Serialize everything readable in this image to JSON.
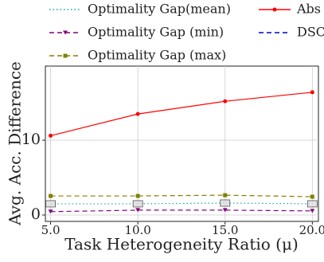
{
  "chart_data": {
    "type": "line",
    "xlabel": "Task Heterogeneity Ratio (μ)",
    "ylabel": "Avg. Acc. Difference",
    "x": [
      5,
      10,
      15,
      20
    ],
    "xlim": [
      4.7,
      20.35
    ],
    "ylim": [
      -0.85,
      19.9
    ],
    "xticks": [
      {
        "value": 5,
        "label": "5.0"
      },
      {
        "value": 10,
        "label": "10.0"
      },
      {
        "value": 15,
        "label": "15.0"
      },
      {
        "value": 20,
        "label": "20.0"
      }
    ],
    "yticks": [
      0,
      10
    ],
    "grid": true,
    "series": [
      {
        "name": "Optimality Gap(mean)",
        "color": "#17a2a2",
        "dash": "dotted",
        "marker": "box",
        "values": [
          1.5,
          1.5,
          1.6,
          1.5
        ]
      },
      {
        "name": "Optimality Gap (min)",
        "color": "#800080",
        "dash": "dashed",
        "marker": "triangle-down",
        "values": [
          0.45,
          0.65,
          0.65,
          0.55
        ]
      },
      {
        "name": "Optimality Gap (max)",
        "color": "#808000",
        "dash": "dashed",
        "marker": "square",
        "values": [
          2.55,
          2.55,
          2.65,
          2.45
        ]
      },
      {
        "name": "Abs",
        "color": "#ff0000",
        "dash": "solid",
        "marker": "circle",
        "values": [
          10.6,
          13.5,
          15.2,
          16.4
        ]
      },
      {
        "name": "DSC",
        "color": "#0000cc",
        "dash": "dashed",
        "marker": "none",
        "values": [
          null,
          null,
          null,
          null
        ]
      }
    ]
  }
}
